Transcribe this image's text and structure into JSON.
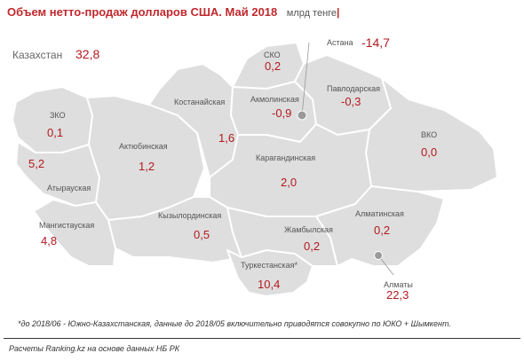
{
  "header": {
    "title": "Объем нетто-продаж долларов США. Май 2018",
    "units": "млрд тенге",
    "pipe": "|"
  },
  "country": {
    "label": "Казахстан",
    "value": "32,8"
  },
  "astana": {
    "label": "Астана",
    "value": "-14,7"
  },
  "almaty": {
    "label": "Алматы",
    "value": "22,3"
  },
  "regions": {
    "sko": {
      "label": "СКО",
      "value": "0,2"
    },
    "akmola": {
      "label": "Акмолинская",
      "value": "-0,9"
    },
    "pavlodar": {
      "label": "Павлодарская",
      "value": "-0,3"
    },
    "kostanay": {
      "label": "Костанайская",
      "value": "1,6"
    },
    "zko": {
      "label": "ЗКО",
      "value": "0,1"
    },
    "aktobe": {
      "label": "Актюбинская",
      "value": "1,2"
    },
    "vko": {
      "label": "ВКО",
      "value": "0,0"
    },
    "atyrau": {
      "label": "Атырауская",
      "value": "5,2"
    },
    "karaganda": {
      "label": "Карагандинская",
      "value": "2,0"
    },
    "mangystau": {
      "label": "Мангистауская",
      "value": "4,8"
    },
    "kyzylorda": {
      "label": "Кызылординская",
      "value": "0,5"
    },
    "almaty_reg": {
      "label": "Алматинская",
      "value": "0,2"
    },
    "zhambyl": {
      "label": "Жамбылская",
      "value": "0,2"
    },
    "turkestan": {
      "label": "Туркестанская*",
      "value": "10,4"
    }
  },
  "footnote": "*до 2018/06 - Южно-Казахстанская, данные до 2018/05 включительно приводятся совокупно по ЮКО + Шымкент.",
  "source": "Расчеты Ranking.kz на основе данных НБ РК",
  "colors": {
    "accent": "#c0282d",
    "region_fill": "#dedede",
    "border": "#ffffff"
  }
}
